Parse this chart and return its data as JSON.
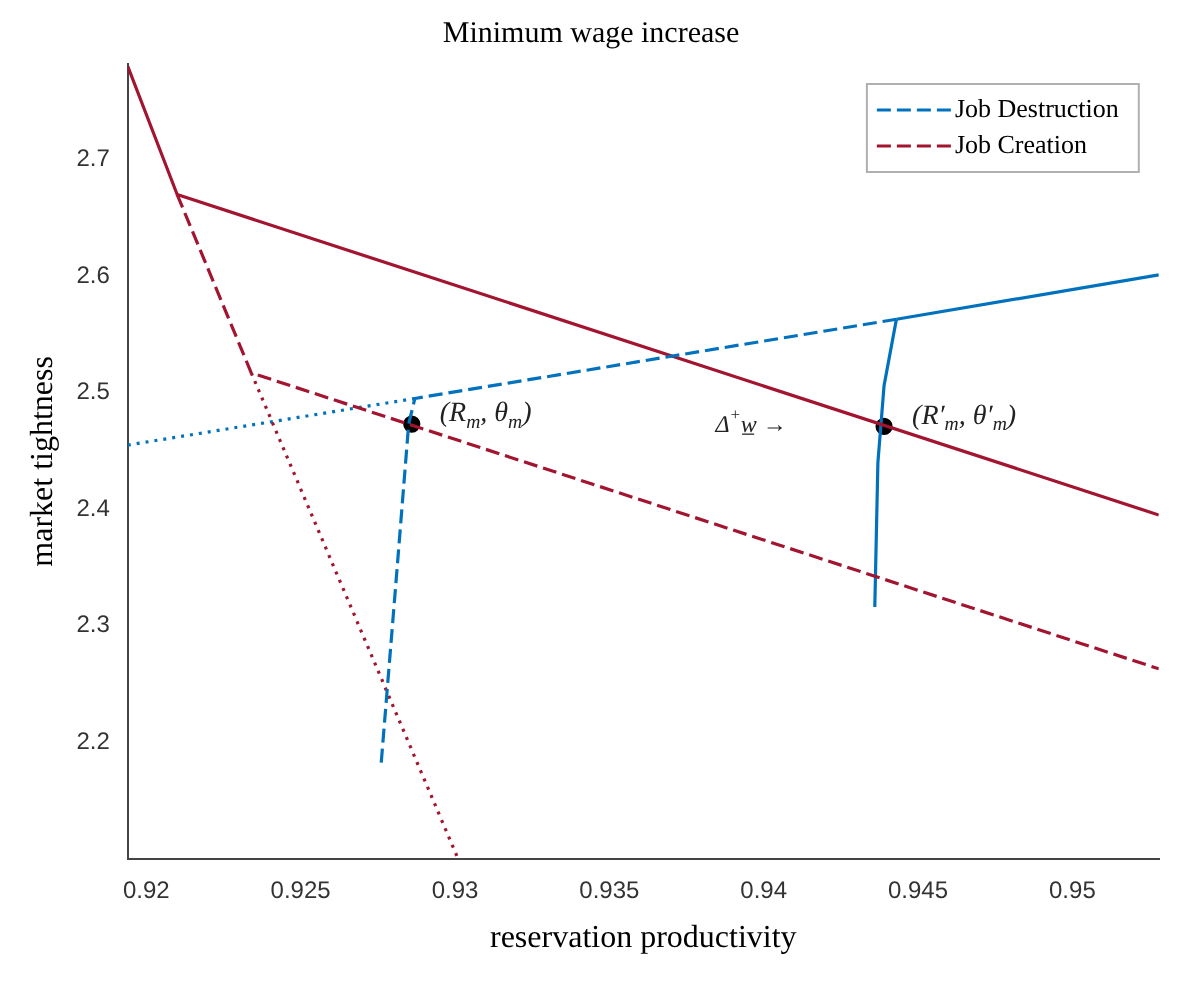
{
  "chart_data": {
    "type": "line",
    "title": "Minimum wage increase",
    "xlabel": "reservation productivity",
    "ylabel": "market tightness",
    "xlim": [
      0.9194,
      0.9528
    ],
    "ylim": [
      2.1,
      2.782
    ],
    "xticks": [
      0.92,
      0.925,
      0.93,
      0.935,
      0.94,
      0.945,
      0.95
    ],
    "yticks": [
      2.2,
      2.3,
      2.4,
      2.5,
      2.6,
      2.7
    ],
    "grid": false,
    "legend": "top right",
    "marker": "none",
    "series": [
      {
        "name": "Job Destruction",
        "color": "#0072bd",
        "line_style": "dashed",
        "x": [
          0.9443,
          0.9287,
          0.9285,
          0.9284,
          0.9281,
          0.9276
        ],
        "values": [
          2.563,
          2.495,
          2.473,
          2.44,
          2.341,
          2.179
        ]
      },
      {
        "name": "Job Creation",
        "color": "#a2142f",
        "line_style": "dashed",
        "x": [
          0.921,
          0.9234,
          0.9528
        ],
        "values": [
          2.67,
          2.517,
          2.263
        ]
      },
      {
        "color": "#a2142f",
        "line_style": "solid",
        "x": [
          0.9194,
          0.921,
          0.9528
        ],
        "values": [
          2.78,
          2.67,
          2.395
        ]
      },
      {
        "color": "#a2142f",
        "line_style": "dotted",
        "x": [
          0.9234,
          0.9301
        ],
        "values": [
          2.517,
          2.1
        ]
      },
      {
        "color": "#0072bd",
        "line_style": "dotted",
        "x": [
          0.9194,
          0.9287
        ],
        "values": [
          2.455,
          2.495
        ]
      },
      {
        "color": "#0072bd",
        "line_style": "solid",
        "x": [
          0.9443,
          0.9528
        ],
        "values": [
          2.563,
          2.601
        ]
      },
      {
        "color": "#0072bd",
        "line_style": "solid",
        "x": [
          0.9443,
          0.9439,
          0.9437,
          0.9436
        ],
        "values": [
          2.563,
          2.506,
          2.44,
          2.316
        ]
      },
      {
        "type": "scatter",
        "marker": "circle",
        "color": "#000000",
        "x": [
          0.9286,
          0.9439
        ],
        "values": [
          2.473,
          2.471
        ]
      }
    ],
    "annotations": [
      {
        "text": "(R$_{m}$, θ$_{m}$)",
        "x": 0.9286,
        "y": 2.473
      },
      {
        "text": "(R′$_{m}$, θ′$_{m}$)",
        "x": 0.9439,
        "y": 2.471
      },
      "Δ$^{+}$w̲ →"
    ]
  }
}
